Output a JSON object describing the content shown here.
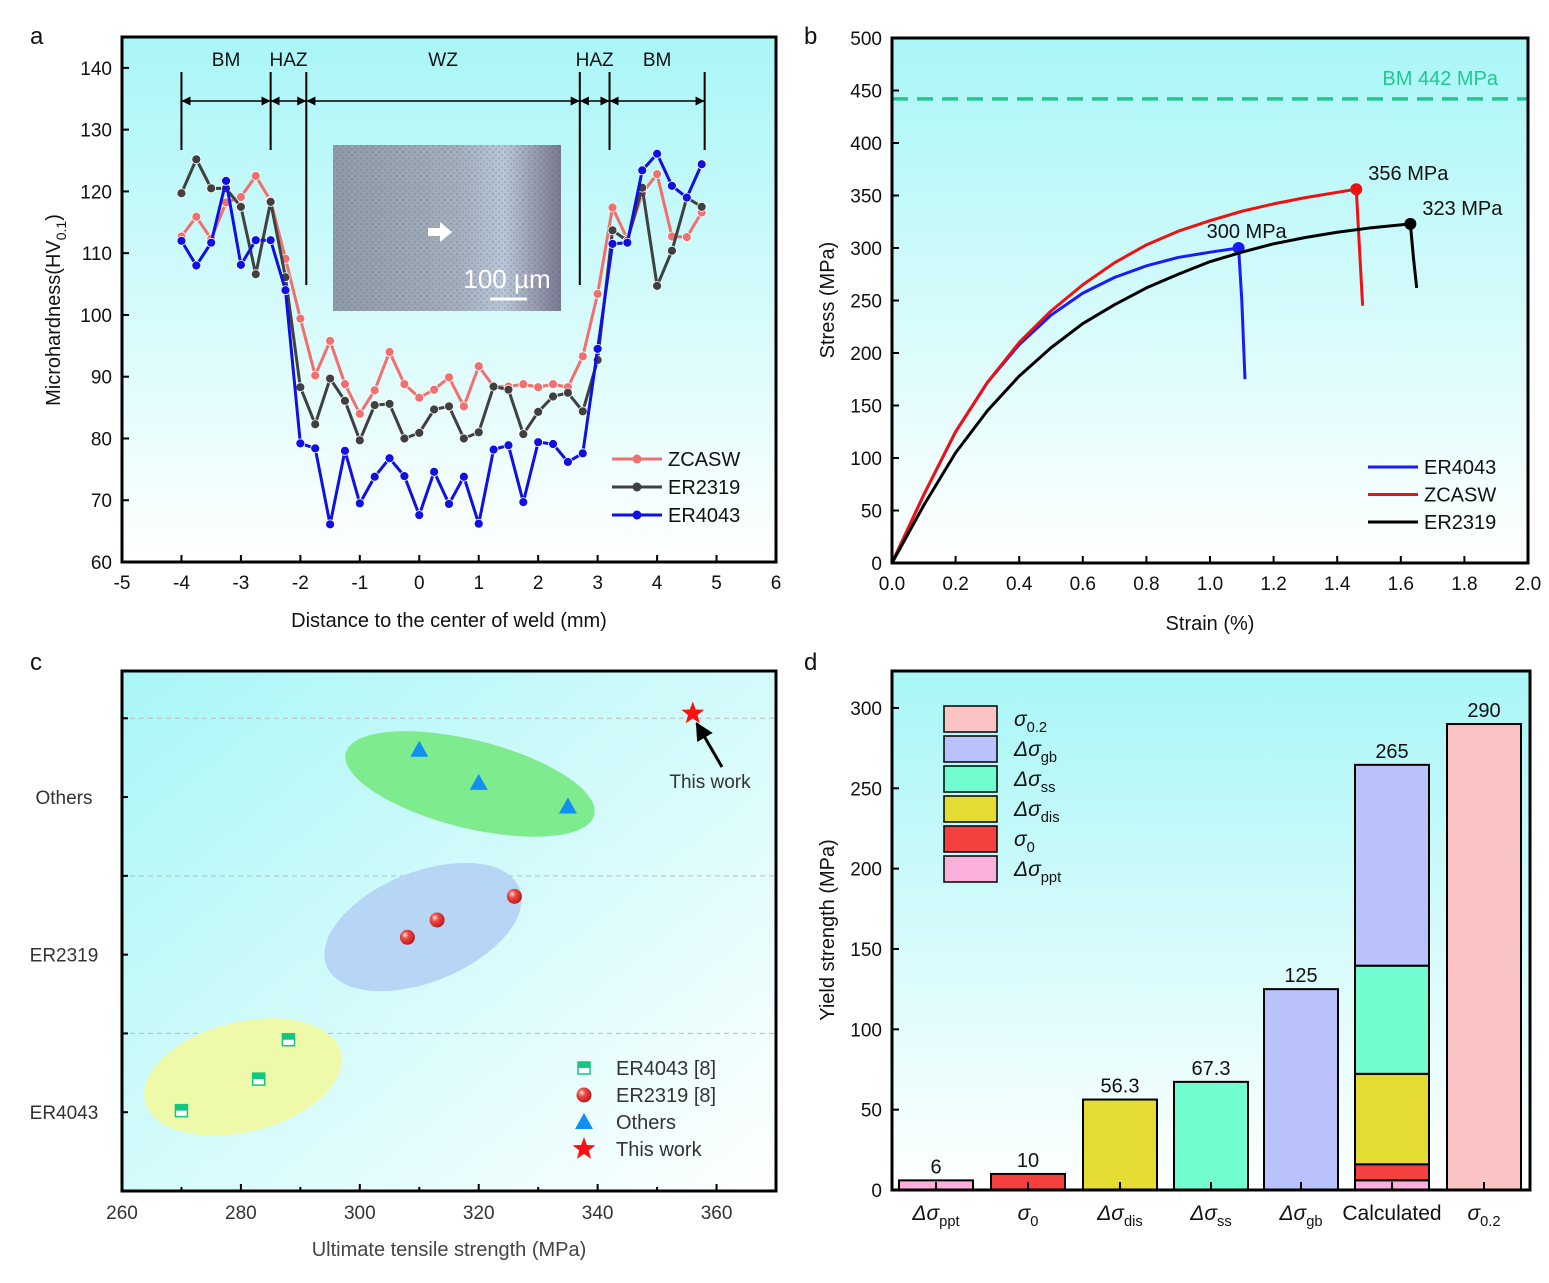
{
  "panel_letters": [
    "a",
    "b",
    "c",
    "d"
  ],
  "chart_data": [
    {
      "panel": "a",
      "type": "line",
      "xlabel": "Distance to the center of weld (mm)",
      "ylabel": {
        "main": "Microhardness(HV",
        "sub": "0.1",
        "end": ")"
      },
      "xlim": [
        -5,
        6
      ],
      "ylim": [
        60,
        145
      ],
      "xticks": [
        -5,
        -4,
        -3,
        -2,
        -1,
        0,
        1,
        2,
        3,
        4,
        5,
        6
      ],
      "yticks": [
        60,
        70,
        80,
        90,
        100,
        110,
        120,
        130,
        140
      ],
      "x": [
        -4,
        -3.75,
        -3.5,
        -3.25,
        -3,
        -2.75,
        -2.5,
        -2.25,
        -2,
        -1.75,
        -1.5,
        -1.25,
        -1,
        -0.75,
        -0.5,
        -0.25,
        0,
        0.25,
        0.5,
        0.75,
        1,
        1.25,
        1.5,
        1.75,
        2,
        2.25,
        2.5,
        2.75,
        3,
        3.25,
        3.5,
        3.75,
        4,
        4.25,
        4.5,
        4.75
      ],
      "series": [
        {
          "name": "ZCASW",
          "color": "#f07070",
          "values": [
            112.7,
            115.9,
            112.3,
            118.2,
            119.1,
            122.5,
            118.5,
            109.1,
            99.4,
            90.2,
            95.8,
            88.8,
            84,
            87.8,
            94,
            88.8,
            86.6,
            87.9,
            89.9,
            85.2,
            91.7,
            88.4,
            88.4,
            88.8,
            88.3,
            88.8,
            88.3,
            93.3,
            103.4,
            117.4,
            112.3,
            119.7,
            122.8,
            112.7,
            112.6,
            116.6
          ]
        },
        {
          "name": "ER2319",
          "color": "#404040",
          "values": [
            119.7,
            125.2,
            120.5,
            120.5,
            117.5,
            106.6,
            118.3,
            106.1,
            88.3,
            82.3,
            89.7,
            86.1,
            79.7,
            85.4,
            85.6,
            80,
            80.9,
            84.7,
            85.2,
            80,
            81,
            88.4,
            87.9,
            80.7,
            84.3,
            86.8,
            87.4,
            84.4,
            92.7,
            113.7,
            112,
            120.6,
            104.7,
            110.4,
            119,
            117.5
          ]
        },
        {
          "name": "ER4043",
          "color": "#1010e0",
          "values": [
            112,
            108,
            111.7,
            121.7,
            108.1,
            112.1,
            112.1,
            104,
            79.2,
            78.4,
            66.1,
            78,
            69.5,
            73.8,
            76.8,
            73.9,
            67.6,
            74.6,
            69.4,
            73.8,
            66.2,
            78.2,
            78.9,
            69.7,
            79.4,
            79.1,
            76.2,
            77.6,
            94.5,
            111.5,
            111.7,
            123.4,
            126.1,
            120.9,
            119,
            124.4
          ]
        }
      ],
      "zones": [
        {
          "label": "BM",
          "from": -4,
          "to": -2.5
        },
        {
          "label": "HAZ",
          "from": -2.5,
          "to": -1.9
        },
        {
          "label": "WZ",
          "from": -1.9,
          "to": 2.7
        },
        {
          "label": "HAZ",
          "from": 2.7,
          "to": 3.2
        },
        {
          "label": "BM",
          "from": 3.2,
          "to": 4.8
        }
      ],
      "inset_scale_bar": "100 µm",
      "legend": "bottom-right"
    },
    {
      "panel": "b",
      "type": "line",
      "xlabel": "Strain (%)",
      "ylabel": "Stress (MPa)",
      "xlim": [
        0,
        2.0
      ],
      "ylim": [
        0,
        500
      ],
      "xticks": [
        "0.0",
        "0.2",
        "0.4",
        "0.6",
        "0.8",
        "1.0",
        "1.2",
        "1.4",
        "1.6",
        "1.8",
        "2.0"
      ],
      "yticks": [
        0,
        50,
        100,
        150,
        200,
        250,
        300,
        350,
        400,
        450,
        500
      ],
      "reference_line": {
        "label": "BM 442 MPa",
        "value": 442,
        "color": "#20c890"
      },
      "series": [
        {
          "name": "ER4043",
          "color": "#1a1aff",
          "peak_label": "300 MPa",
          "peak": [
            1.09,
            300
          ],
          "points": [
            [
              0,
              0
            ],
            [
              0.1,
              65
            ],
            [
              0.2,
              125
            ],
            [
              0.3,
              172
            ],
            [
              0.4,
              208
            ],
            [
              0.5,
              236
            ],
            [
              0.6,
              257
            ],
            [
              0.7,
              272
            ],
            [
              0.8,
              283
            ],
            [
              0.9,
              291
            ],
            [
              1.0,
              296
            ],
            [
              1.09,
              300
            ],
            [
              1.1,
              250
            ],
            [
              1.11,
              175
            ]
          ]
        },
        {
          "name": "ZCASW",
          "color": "#ee1111",
          "peak_label": "356 MPa",
          "peak": [
            1.46,
            356
          ],
          "points": [
            [
              0,
              0
            ],
            [
              0.1,
              65
            ],
            [
              0.2,
              125
            ],
            [
              0.3,
              172
            ],
            [
              0.4,
              210
            ],
            [
              0.5,
              240
            ],
            [
              0.6,
              265
            ],
            [
              0.7,
              286
            ],
            [
              0.8,
              303
            ],
            [
              0.9,
              316
            ],
            [
              1.0,
              326
            ],
            [
              1.1,
              335
            ],
            [
              1.2,
              342
            ],
            [
              1.3,
              348
            ],
            [
              1.46,
              356
            ],
            [
              1.47,
              300
            ],
            [
              1.48,
              245
            ]
          ]
        },
        {
          "name": "ER2319",
          "color": "#000000",
          "peak_label": "323 MPa",
          "peak": [
            1.63,
            323
          ],
          "points": [
            [
              0,
              0
            ],
            [
              0.1,
              55
            ],
            [
              0.2,
              105
            ],
            [
              0.3,
              145
            ],
            [
              0.4,
              178
            ],
            [
              0.5,
              205
            ],
            [
              0.6,
              228
            ],
            [
              0.7,
              246
            ],
            [
              0.8,
              262
            ],
            [
              0.9,
              275
            ],
            [
              1.0,
              287
            ],
            [
              1.1,
              296
            ],
            [
              1.2,
              304
            ],
            [
              1.3,
              310
            ],
            [
              1.4,
              315
            ],
            [
              1.5,
              319
            ],
            [
              1.63,
              323
            ],
            [
              1.64,
              290
            ],
            [
              1.65,
              262
            ]
          ]
        }
      ],
      "legend": "bottom-right"
    },
    {
      "panel": "c",
      "type": "scatter",
      "xlabel": "Ultimate tensile strength (MPa)",
      "xlim": [
        260,
        370
      ],
      "xticks": [
        260,
        280,
        300,
        320,
        340,
        360
      ],
      "categories": [
        "ER4043",
        "ER2319",
        "Others"
      ],
      "ylim": [
        0,
        3.3
      ],
      "series": [
        {
          "name": "ER4043 [8]",
          "marker": "half-square",
          "color": "#10c880",
          "points": [
            [
              270,
              0.51
            ],
            [
              283,
              0.71
            ],
            [
              288,
              0.96
            ]
          ]
        },
        {
          "name": "ER2319 [8]",
          "marker": "sphere",
          "color": "#e83030",
          "points": [
            [
              308,
              1.61
            ],
            [
              313,
              1.72
            ],
            [
              326,
              1.87
            ]
          ]
        },
        {
          "name": "Others",
          "marker": "triangle",
          "color": "#1090f0",
          "points": [
            [
              310,
              2.8
            ],
            [
              320,
              2.59
            ],
            [
              335,
              2.44
            ]
          ]
        },
        {
          "name": "This work",
          "marker": "star",
          "color": "#ff1010",
          "points": [
            [
              356,
              3.03
            ]
          ]
        }
      ],
      "annotation": "This work",
      "legend": "bottom-right"
    },
    {
      "panel": "d",
      "type": "bar",
      "ylabel": "Yield strength (MPa)",
      "ylim": [
        0,
        323
      ],
      "yticks": [
        0,
        50,
        100,
        150,
        200,
        250,
        300
      ],
      "components": [
        {
          "key": "ppt",
          "main": "Δσ",
          "sub": "ppt",
          "color": "#fbb0dc"
        },
        {
          "key": "s0",
          "main": "σ",
          "sub": "0",
          "color": "#f54040"
        },
        {
          "key": "dis",
          "main": "Δσ",
          "sub": "dis",
          "color": "#e4dc32"
        },
        {
          "key": "ss",
          "main": "Δσ",
          "sub": "ss",
          "color": "#72fdd0"
        },
        {
          "key": "gb",
          "main": "Δσ",
          "sub": "gb",
          "color": "#b9c2fb"
        },
        {
          "key": "s02",
          "main": "σ",
          "sub": "0.2",
          "color": "#fbc4c4"
        }
      ],
      "legend_order": [
        "s02",
        "gb",
        "ss",
        "dis",
        "s0",
        "ppt"
      ],
      "bars": [
        {
          "label": {
            "main": "Δσ",
            "sub": "ppt"
          },
          "value_label": "6",
          "stack": [
            [
              "ppt",
              6
            ]
          ]
        },
        {
          "label": {
            "main": "σ",
            "sub": "0"
          },
          "value_label": "10",
          "stack": [
            [
              "s0",
              10
            ]
          ]
        },
        {
          "label": {
            "main": "Δσ",
            "sub": "dis"
          },
          "value_label": "56.3",
          "stack": [
            [
              "dis",
              56.3
            ]
          ]
        },
        {
          "label": {
            "main": "Δσ",
            "sub": "ss"
          },
          "value_label": "67.3",
          "stack": [
            [
              "ss",
              67.3
            ]
          ]
        },
        {
          "label": {
            "main": "Δσ",
            "sub": "gb"
          },
          "value_label": "125",
          "stack": [
            [
              "gb",
              125
            ]
          ]
        },
        {
          "label": {
            "main": "Calculated",
            "sub": ""
          },
          "value_label": "265",
          "stack": [
            [
              "ppt",
              6
            ],
            [
              "s0",
              10
            ],
            [
              "dis",
              56.3
            ],
            [
              "ss",
              67.3
            ],
            [
              "gb",
              125
            ]
          ]
        },
        {
          "label": {
            "main": "σ",
            "sub": "0.2"
          },
          "value_label": "290",
          "stack": [
            [
              "s02",
              290
            ]
          ]
        }
      ],
      "legend": "top-left"
    }
  ]
}
